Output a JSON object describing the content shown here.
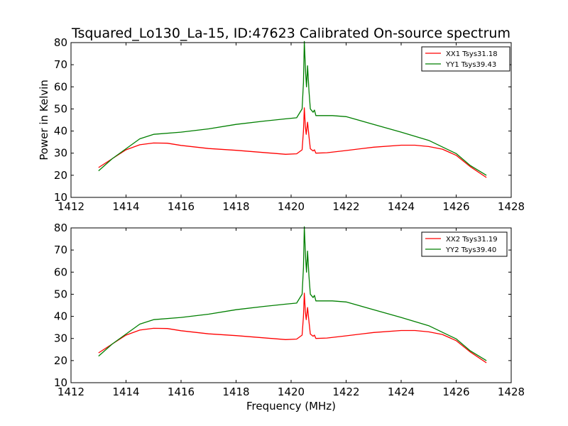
{
  "chart_data": [
    {
      "type": "line",
      "title": "Tsquared_Lo130_La-15, ID:47623 Calibrated On-source spectrum",
      "xlabel": "",
      "ylabel": "Power in Kelvin",
      "xlim": [
        1412,
        1428
      ],
      "ylim": [
        10,
        80
      ],
      "xticks": [
        1412,
        1414,
        1416,
        1418,
        1420,
        1422,
        1424,
        1426,
        1428
      ],
      "yticks": [
        10,
        20,
        30,
        40,
        50,
        60,
        70,
        80
      ],
      "grid": false,
      "legend_position": "top-right",
      "series": [
        {
          "name": "XX1 Tsys31.18",
          "color": "#ff0000",
          "points": [
            [
              1413.0,
              23.5
            ],
            [
              1413.5,
              27.5
            ],
            [
              1414.0,
              31.5
            ],
            [
              1414.5,
              33.8
            ],
            [
              1415.0,
              34.6
            ],
            [
              1415.5,
              34.5
            ],
            [
              1416.0,
              33.5
            ],
            [
              1417.0,
              32.1
            ],
            [
              1418.0,
              31.3
            ],
            [
              1419.0,
              30.3
            ],
            [
              1419.8,
              29.5
            ],
            [
              1420.2,
              29.7
            ],
            [
              1420.4,
              31.5
            ],
            [
              1420.45,
              40.0
            ],
            [
              1420.48,
              50.5
            ],
            [
              1420.52,
              42.0
            ],
            [
              1420.55,
              38.5
            ],
            [
              1420.6,
              44.0
            ],
            [
              1420.65,
              37.5
            ],
            [
              1420.7,
              32.0
            ],
            [
              1420.8,
              31.0
            ],
            [
              1420.85,
              31.5
            ],
            [
              1420.9,
              30.0
            ],
            [
              1421.3,
              30.2
            ],
            [
              1422.0,
              31.2
            ],
            [
              1423.0,
              32.7
            ],
            [
              1424.0,
              33.6
            ],
            [
              1424.5,
              33.6
            ],
            [
              1425.0,
              33.0
            ],
            [
              1425.5,
              31.8
            ],
            [
              1426.0,
              29.0
            ],
            [
              1426.5,
              24.0
            ],
            [
              1427.1,
              19.0
            ]
          ]
        },
        {
          "name": "YY1 Tsys39.43",
          "color": "#007f00",
          "points": [
            [
              1413.0,
              22.0
            ],
            [
              1413.5,
              27.5
            ],
            [
              1414.0,
              32.0
            ],
            [
              1414.5,
              36.5
            ],
            [
              1415.0,
              38.5
            ],
            [
              1416.0,
              39.5
            ],
            [
              1417.0,
              41.0
            ],
            [
              1418.0,
              43.0
            ],
            [
              1419.0,
              44.5
            ],
            [
              1419.8,
              45.5
            ],
            [
              1420.2,
              46.0
            ],
            [
              1420.4,
              50.0
            ],
            [
              1420.45,
              62.0
            ],
            [
              1420.48,
              80.5
            ],
            [
              1420.53,
              66.0
            ],
            [
              1420.56,
              60.0
            ],
            [
              1420.6,
              69.5
            ],
            [
              1420.65,
              58.0
            ],
            [
              1420.7,
              50.0
            ],
            [
              1420.8,
              48.5
            ],
            [
              1420.85,
              49.5
            ],
            [
              1420.9,
              47.0
            ],
            [
              1421.5,
              47.0
            ],
            [
              1422.0,
              46.5
            ],
            [
              1423.0,
              43.0
            ],
            [
              1424.0,
              39.5
            ],
            [
              1425.0,
              35.8
            ],
            [
              1426.0,
              29.8
            ],
            [
              1426.5,
              24.5
            ],
            [
              1427.1,
              20.0
            ]
          ]
        }
      ]
    },
    {
      "type": "line",
      "title": "",
      "xlabel": "Frequency (MHz)",
      "ylabel": "",
      "xlim": [
        1412,
        1428
      ],
      "ylim": [
        10,
        80
      ],
      "xticks": [
        1412,
        1414,
        1416,
        1418,
        1420,
        1422,
        1424,
        1426,
        1428
      ],
      "yticks": [
        10,
        20,
        30,
        40,
        50,
        60,
        70,
        80
      ],
      "grid": false,
      "legend_position": "top-right",
      "series": [
        {
          "name": "XX2 Tsys31.19",
          "color": "#ff0000",
          "points": [
            [
              1413.0,
              23.5
            ],
            [
              1413.5,
              27.5
            ],
            [
              1414.0,
              31.5
            ],
            [
              1414.5,
              33.8
            ],
            [
              1415.0,
              34.6
            ],
            [
              1415.5,
              34.5
            ],
            [
              1416.0,
              33.5
            ],
            [
              1417.0,
              32.1
            ],
            [
              1418.0,
              31.3
            ],
            [
              1419.0,
              30.3
            ],
            [
              1419.8,
              29.5
            ],
            [
              1420.2,
              29.7
            ],
            [
              1420.4,
              31.5
            ],
            [
              1420.45,
              40.0
            ],
            [
              1420.48,
              50.5
            ],
            [
              1420.52,
              42.0
            ],
            [
              1420.55,
              38.5
            ],
            [
              1420.6,
              44.0
            ],
            [
              1420.65,
              37.5
            ],
            [
              1420.7,
              32.0
            ],
            [
              1420.8,
              31.0
            ],
            [
              1420.85,
              31.5
            ],
            [
              1420.9,
              30.0
            ],
            [
              1421.3,
              30.2
            ],
            [
              1422.0,
              31.2
            ],
            [
              1423.0,
              32.7
            ],
            [
              1424.0,
              33.6
            ],
            [
              1424.5,
              33.6
            ],
            [
              1425.0,
              33.0
            ],
            [
              1425.5,
              31.8
            ],
            [
              1426.0,
              29.0
            ],
            [
              1426.5,
              24.0
            ],
            [
              1427.1,
              19.0
            ]
          ]
        },
        {
          "name": "YY2 Tsys39.40",
          "color": "#007f00",
          "points": [
            [
              1413.0,
              22.0
            ],
            [
              1413.5,
              27.5
            ],
            [
              1414.0,
              32.0
            ],
            [
              1414.5,
              36.5
            ],
            [
              1415.0,
              38.5
            ],
            [
              1416.0,
              39.5
            ],
            [
              1417.0,
              41.0
            ],
            [
              1418.0,
              43.0
            ],
            [
              1419.0,
              44.5
            ],
            [
              1419.8,
              45.5
            ],
            [
              1420.2,
              46.0
            ],
            [
              1420.4,
              50.0
            ],
            [
              1420.45,
              62.0
            ],
            [
              1420.48,
              80.5
            ],
            [
              1420.53,
              66.0
            ],
            [
              1420.56,
              60.0
            ],
            [
              1420.6,
              69.5
            ],
            [
              1420.65,
              58.0
            ],
            [
              1420.7,
              50.0
            ],
            [
              1420.8,
              48.5
            ],
            [
              1420.85,
              49.5
            ],
            [
              1420.9,
              47.0
            ],
            [
              1421.5,
              47.0
            ],
            [
              1422.0,
              46.5
            ],
            [
              1423.0,
              43.0
            ],
            [
              1424.0,
              39.5
            ],
            [
              1425.0,
              35.8
            ],
            [
              1426.0,
              29.8
            ],
            [
              1426.5,
              24.5
            ],
            [
              1427.1,
              20.0
            ]
          ]
        }
      ]
    }
  ]
}
